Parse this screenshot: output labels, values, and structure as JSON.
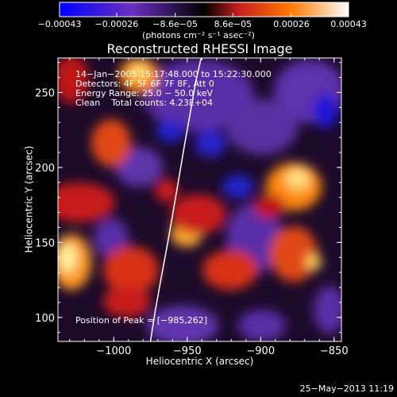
{
  "chart_data": {
    "type": "heatmap",
    "title": "Reconstructed RHESSI Image",
    "xlabel": "Heliocentric X (arcsec)",
    "ylabel": "Heliocentric Y (arcsec)",
    "xlim": [
      -1038,
      -845
    ],
    "ylim": [
      84,
      273
    ],
    "x_ticks": [
      -1000,
      -950,
      -900,
      -850
    ],
    "y_ticks": [
      100,
      150,
      200,
      250
    ],
    "x_tick_labels": [
      "−1000",
      "−950",
      "−900",
      "−850"
    ],
    "y_tick_labels": [
      "100",
      "150",
      "200",
      "250"
    ],
    "colorbar": {
      "tick_values": [
        -0.00043,
        -0.00026,
        -8.6e-05,
        8.6e-05,
        0.00026,
        0.00043
      ],
      "tick_labels": [
        "−0.00043",
        "−0.00026",
        "−8.6e−05",
        "8.6e−05",
        "0.00026",
        "0.00043"
      ],
      "units": "(photons cm⁻² s⁻¹ asec⁻²)",
      "range": [
        -0.00043,
        0.00043
      ],
      "colors": [
        "#0000ff",
        "#6a2fbf",
        "#000000",
        "#c81e1e",
        "#ff7a00",
        "#ffffff"
      ]
    },
    "annotations": [
      "14−Jan−2005 15:17:48.000 to 15:22:30.000",
      "Detectors: 4F 5F 6F 7F 8F, Att 0",
      "Energy Range: 25.0 − 50.0 keV",
      "Clean    Total counts: 4.23E+04",
      "Position of Peak = [−985,262]"
    ],
    "limb": {
      "x": [
        -975.0,
        -972.0,
        -968.0,
        -964.0,
        -960.0,
        -956.0,
        -952.0,
        -948.0,
        -944.0,
        -940.5
      ],
      "y": [
        84,
        103,
        125,
        146,
        168,
        191,
        214,
        236,
        258,
        273
      ]
    },
    "peak": [
      -985,
      262
    ]
  },
  "footer": {
    "timestamp": "25−May−2013 11:19"
  }
}
